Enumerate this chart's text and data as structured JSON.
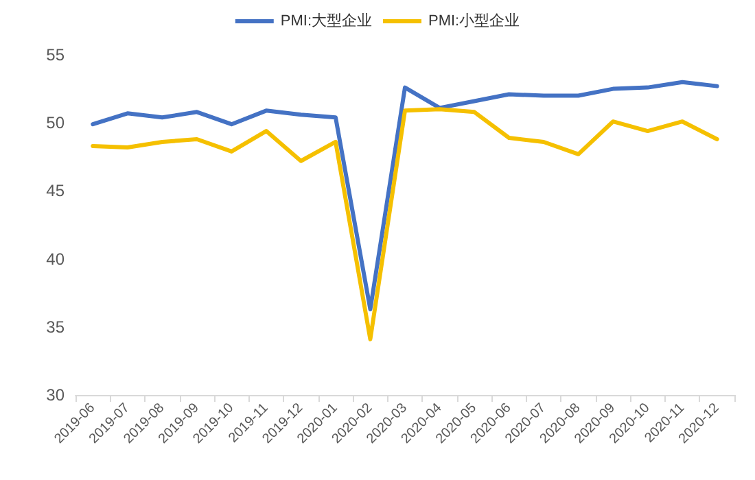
{
  "chart_data": {
    "type": "line",
    "categories": [
      "2019-06",
      "2019-07",
      "2019-08",
      "2019-09",
      "2019-10",
      "2019-11",
      "2019-12",
      "2020-01",
      "2020-02",
      "2020-03",
      "2020-04",
      "2020-05",
      "2020-06",
      "2020-07",
      "2020-08",
      "2020-09",
      "2020-10",
      "2020-11",
      "2020-12"
    ],
    "series": [
      {
        "name": "PMI:大型企业",
        "color": "#4472c4",
        "values": [
          49.9,
          50.7,
          50.4,
          50.8,
          49.9,
          50.9,
          50.6,
          50.4,
          36.3,
          52.6,
          51.1,
          51.6,
          52.1,
          52.0,
          52.0,
          52.5,
          52.6,
          53.0,
          52.7
        ]
      },
      {
        "name": "PMI:小型企业",
        "color": "#f5c000",
        "values": [
          48.3,
          48.2,
          48.6,
          48.8,
          47.9,
          49.4,
          47.2,
          48.6,
          34.1,
          50.9,
          51.0,
          50.8,
          48.9,
          48.6,
          47.7,
          50.1,
          49.4,
          50.1,
          48.8
        ]
      }
    ],
    "ylim": [
      30,
      55
    ],
    "yticks": [
      30,
      35,
      40,
      45,
      50,
      55
    ],
    "grid": false,
    "legend": "top",
    "marker": "none",
    "line_style": "solid"
  }
}
